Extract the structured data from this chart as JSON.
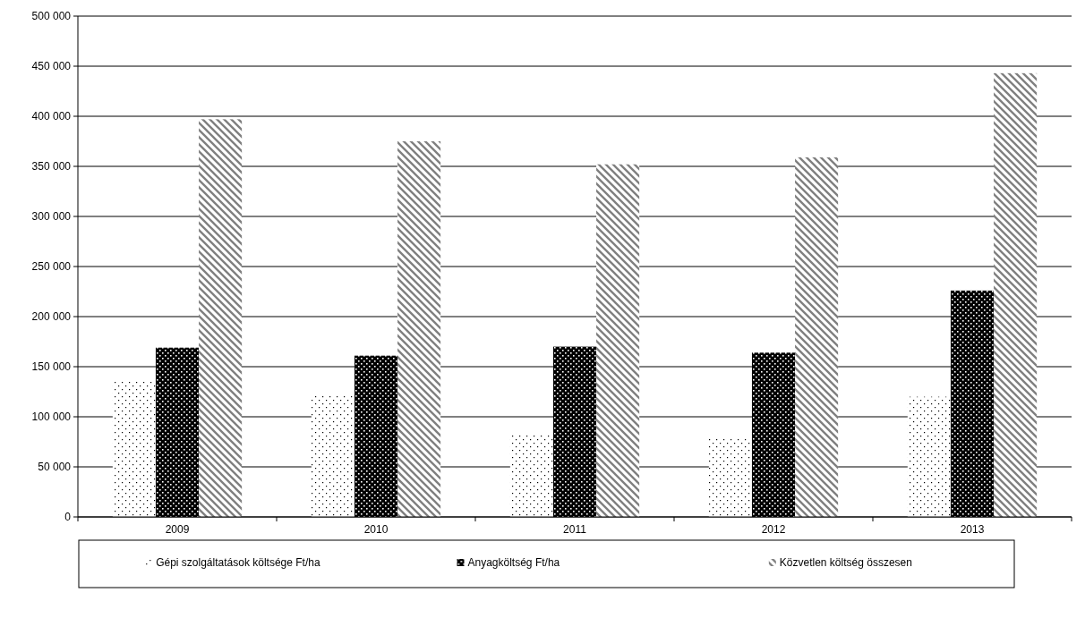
{
  "chart_data": {
    "type": "bar",
    "categories": [
      "2009",
      "2010",
      "2011",
      "2012",
      "2013"
    ],
    "series": [
      {
        "name": "Gépi szolgáltatások költsége Ft/ha",
        "color": "#ffffff",
        "values": [
          136000,
          121000,
          82000,
          79000,
          120000
        ]
      },
      {
        "name": "Anyagköltség Ft/ha",
        "color": "#000000",
        "values": [
          169000,
          161000,
          170000,
          164000,
          226000
        ]
      },
      {
        "name": "Közvetlen költség összesen",
        "color": "#808080",
        "values": [
          397000,
          375000,
          352000,
          359000,
          443000
        ]
      }
    ],
    "ylim": [
      0,
      500000
    ],
    "yticks": [
      {
        "value": 0,
        "label": "0"
      },
      {
        "value": 50000,
        "label": "50 000"
      },
      {
        "value": 100000,
        "label": "100 000"
      },
      {
        "value": 150000,
        "label": "150 000"
      },
      {
        "value": 200000,
        "label": "200 000"
      },
      {
        "value": 250000,
        "label": "250 000"
      },
      {
        "value": 300000,
        "label": "300 000"
      },
      {
        "value": 350000,
        "label": "350 000"
      },
      {
        "value": 400000,
        "label": "400 000"
      },
      {
        "value": 450000,
        "label": "450 000"
      },
      {
        "value": 500000,
        "label": "500 000"
      }
    ],
    "grid": "y",
    "legend": "bottom"
  }
}
